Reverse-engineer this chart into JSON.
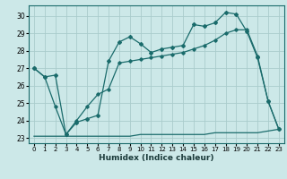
{
  "xlabel": "Humidex (Indice chaleur)",
  "bg_color": "#cce8e8",
  "grid_color": "#aacccc",
  "line_color": "#1a6b6b",
  "xlim": [
    -0.5,
    23.5
  ],
  "ylim": [
    22.7,
    30.6
  ],
  "yticks": [
    23,
    24,
    25,
    26,
    27,
    28,
    29,
    30
  ],
  "xticks": [
    0,
    1,
    2,
    3,
    4,
    5,
    6,
    7,
    8,
    9,
    10,
    11,
    12,
    13,
    14,
    15,
    16,
    17,
    18,
    19,
    20,
    21,
    22,
    23
  ],
  "line1_x": [
    0,
    1,
    2,
    3,
    4,
    5,
    6,
    7,
    8,
    9,
    10,
    11,
    12,
    13,
    14,
    15,
    16,
    17,
    18,
    19,
    20,
    21,
    22,
    23
  ],
  "line1_y": [
    27.0,
    26.5,
    24.8,
    23.2,
    24.0,
    24.8,
    25.5,
    25.8,
    27.3,
    27.4,
    27.5,
    27.6,
    27.7,
    27.8,
    27.9,
    28.1,
    28.3,
    28.6,
    29.0,
    29.2,
    29.2,
    27.7,
    25.1,
    23.5
  ],
  "line2_x": [
    0,
    1,
    2,
    3,
    4,
    5,
    6,
    7,
    8,
    9,
    10,
    11,
    12,
    13,
    14,
    15,
    16,
    17,
    18,
    19,
    20,
    21,
    22,
    23
  ],
  "line2_y": [
    27.0,
    26.5,
    26.6,
    23.2,
    23.9,
    24.1,
    24.3,
    27.4,
    28.5,
    28.8,
    28.4,
    27.9,
    28.1,
    28.2,
    28.3,
    29.5,
    29.4,
    29.6,
    30.2,
    30.1,
    29.1,
    27.6,
    25.1,
    23.5
  ],
  "line3_x": [
    0,
    1,
    2,
    3,
    4,
    5,
    6,
    7,
    8,
    9,
    10,
    11,
    12,
    13,
    14,
    15,
    16,
    17,
    18,
    19,
    20,
    21,
    22,
    23
  ],
  "line3_y": [
    23.1,
    23.1,
    23.1,
    23.1,
    23.1,
    23.1,
    23.1,
    23.1,
    23.1,
    23.1,
    23.2,
    23.2,
    23.2,
    23.2,
    23.2,
    23.2,
    23.2,
    23.3,
    23.3,
    23.3,
    23.3,
    23.3,
    23.4,
    23.5
  ],
  "xlabel_fontsize": 6.5,
  "tick_fontsize": 5.5
}
